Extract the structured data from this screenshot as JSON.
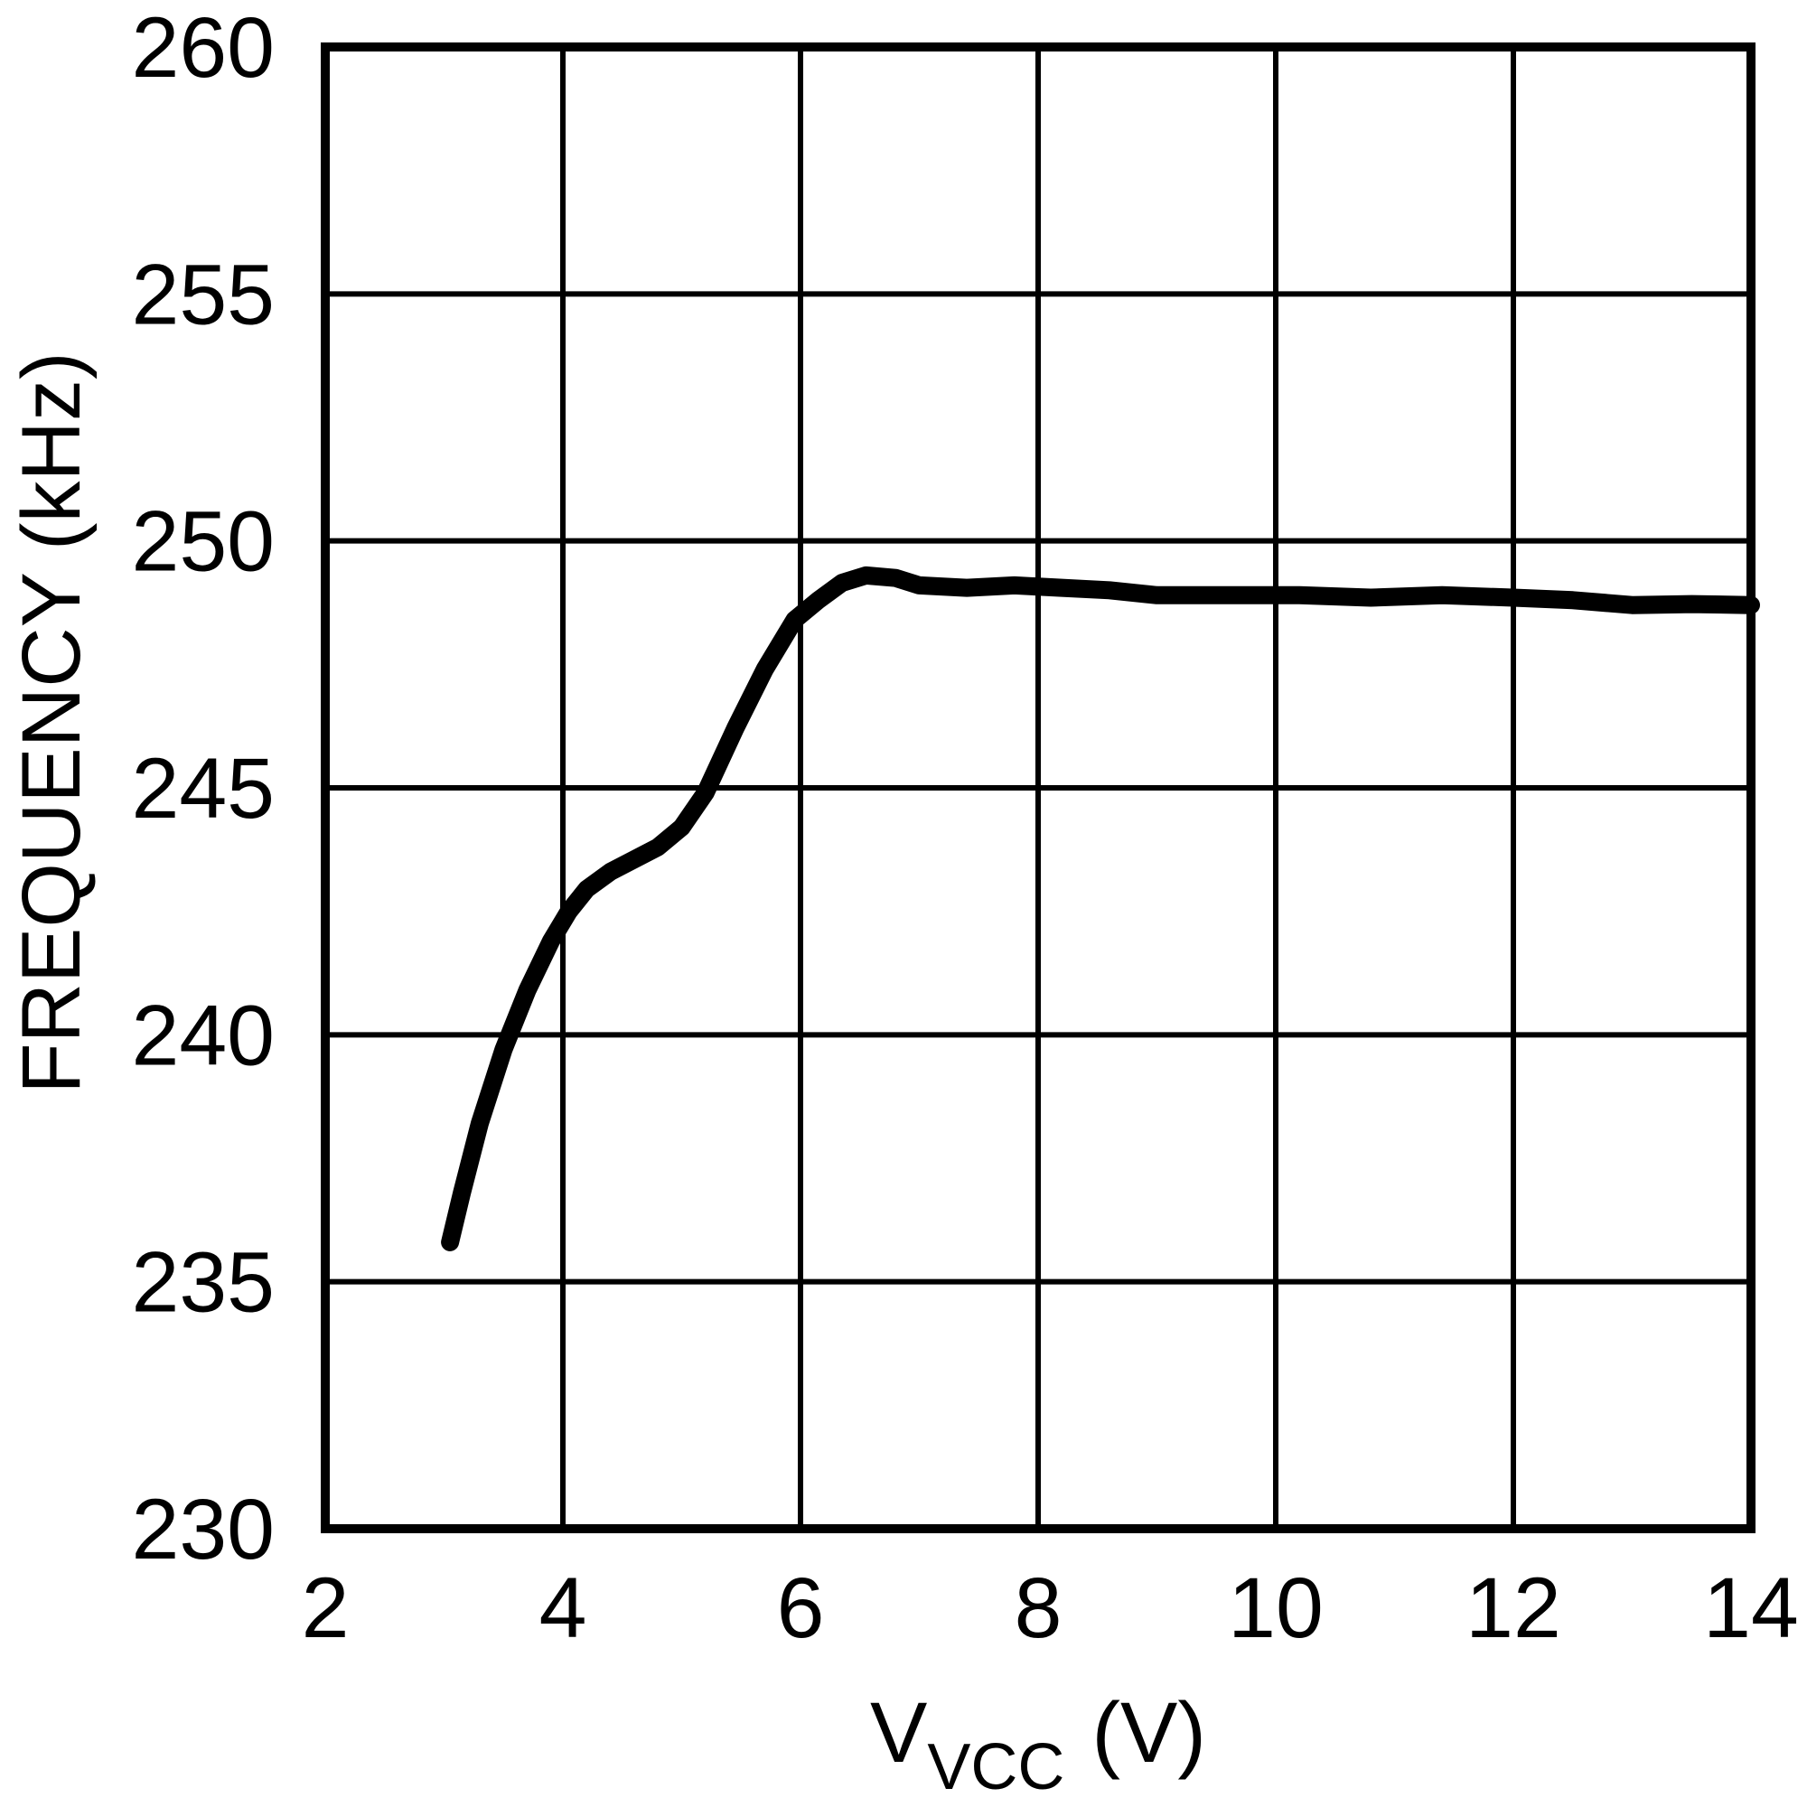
{
  "page": {
    "background_color": "#ffffff",
    "foreground_color": "#000000"
  },
  "chart_data": {
    "type": "line",
    "title": "",
    "xlabel": {
      "main": "V",
      "sub": "VCC",
      "suffix": "(V)"
    },
    "ylabel": "FREQUENCY (kHz)",
    "xlim": [
      2,
      14
    ],
    "ylim": [
      230,
      260
    ],
    "x_ticks": [
      2,
      4,
      6,
      8,
      10,
      12,
      14
    ],
    "y_ticks": [
      230,
      235,
      240,
      245,
      250,
      255,
      260
    ],
    "grid": "on",
    "legend": "none",
    "line_color": "#000000",
    "grid_color": "#000000",
    "series": [
      {
        "name": "frequency-vs-vcc",
        "points": [
          [
            3.05,
            235.8
          ],
          [
            3.15,
            236.8
          ],
          [
            3.3,
            238.2
          ],
          [
            3.5,
            239.7
          ],
          [
            3.7,
            240.9
          ],
          [
            3.9,
            241.9
          ],
          [
            4.05,
            242.5
          ],
          [
            4.2,
            242.95
          ],
          [
            4.4,
            243.3
          ],
          [
            4.6,
            243.55
          ],
          [
            4.8,
            243.8
          ],
          [
            5.0,
            244.2
          ],
          [
            5.2,
            244.9
          ],
          [
            5.45,
            246.2
          ],
          [
            5.7,
            247.4
          ],
          [
            5.95,
            248.4
          ],
          [
            6.15,
            248.8
          ],
          [
            6.35,
            249.15
          ],
          [
            6.55,
            249.3
          ],
          [
            6.8,
            249.25
          ],
          [
            7.0,
            249.1
          ],
          [
            7.4,
            249.05
          ],
          [
            7.8,
            249.1
          ],
          [
            8.2,
            249.05
          ],
          [
            8.6,
            249.0
          ],
          [
            9.0,
            248.9
          ],
          [
            9.6,
            248.9
          ],
          [
            10.2,
            248.9
          ],
          [
            10.8,
            248.85
          ],
          [
            11.4,
            248.9
          ],
          [
            12.0,
            248.85
          ],
          [
            12.5,
            248.8
          ],
          [
            13.0,
            248.7
          ],
          [
            13.5,
            248.72
          ],
          [
            14.0,
            248.7
          ]
        ]
      }
    ]
  }
}
